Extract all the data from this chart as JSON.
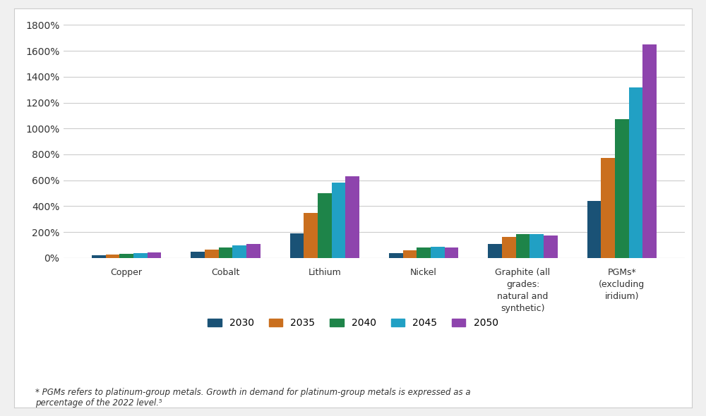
{
  "categories": [
    "Copper",
    "Cobalt",
    "Lithium",
    "Nickel",
    "Graphite (all\ngrades:\nnatural and\nsynthetic)",
    "PGMs*\n(excluding\niridium)"
  ],
  "series_labels": [
    "2030",
    "2035",
    "2040",
    "2045",
    "2050"
  ],
  "series_colors": [
    "#1a5276",
    "#ca6f1e",
    "#1e8449",
    "#21a0c4",
    "#8e44ad"
  ],
  "data": {
    "Copper": [
      20,
      25,
      30,
      35,
      45
    ],
    "Cobalt": [
      50,
      65,
      80,
      95,
      110
    ],
    "Lithium": [
      190,
      350,
      500,
      580,
      630
    ],
    "Nickel": [
      35,
      60,
      80,
      85,
      80
    ],
    "Graphite": [
      110,
      165,
      185,
      185,
      175
    ],
    "PGMs": [
      440,
      770,
      1070,
      1320,
      1650
    ]
  },
  "ylim": [
    0,
    1800
  ],
  "yticks": [
    0,
    200,
    400,
    600,
    800,
    1000,
    1200,
    1400,
    1600,
    1800
  ],
  "outer_bg": "#f0f0f0",
  "box_bg": "#ffffff",
  "grid_color": "#cccccc",
  "footnote": "* PGMs refers to platinum-group metals. Growth in demand for platinum-group metals is expressed as a\npercentage of the 2022 level.⁵"
}
